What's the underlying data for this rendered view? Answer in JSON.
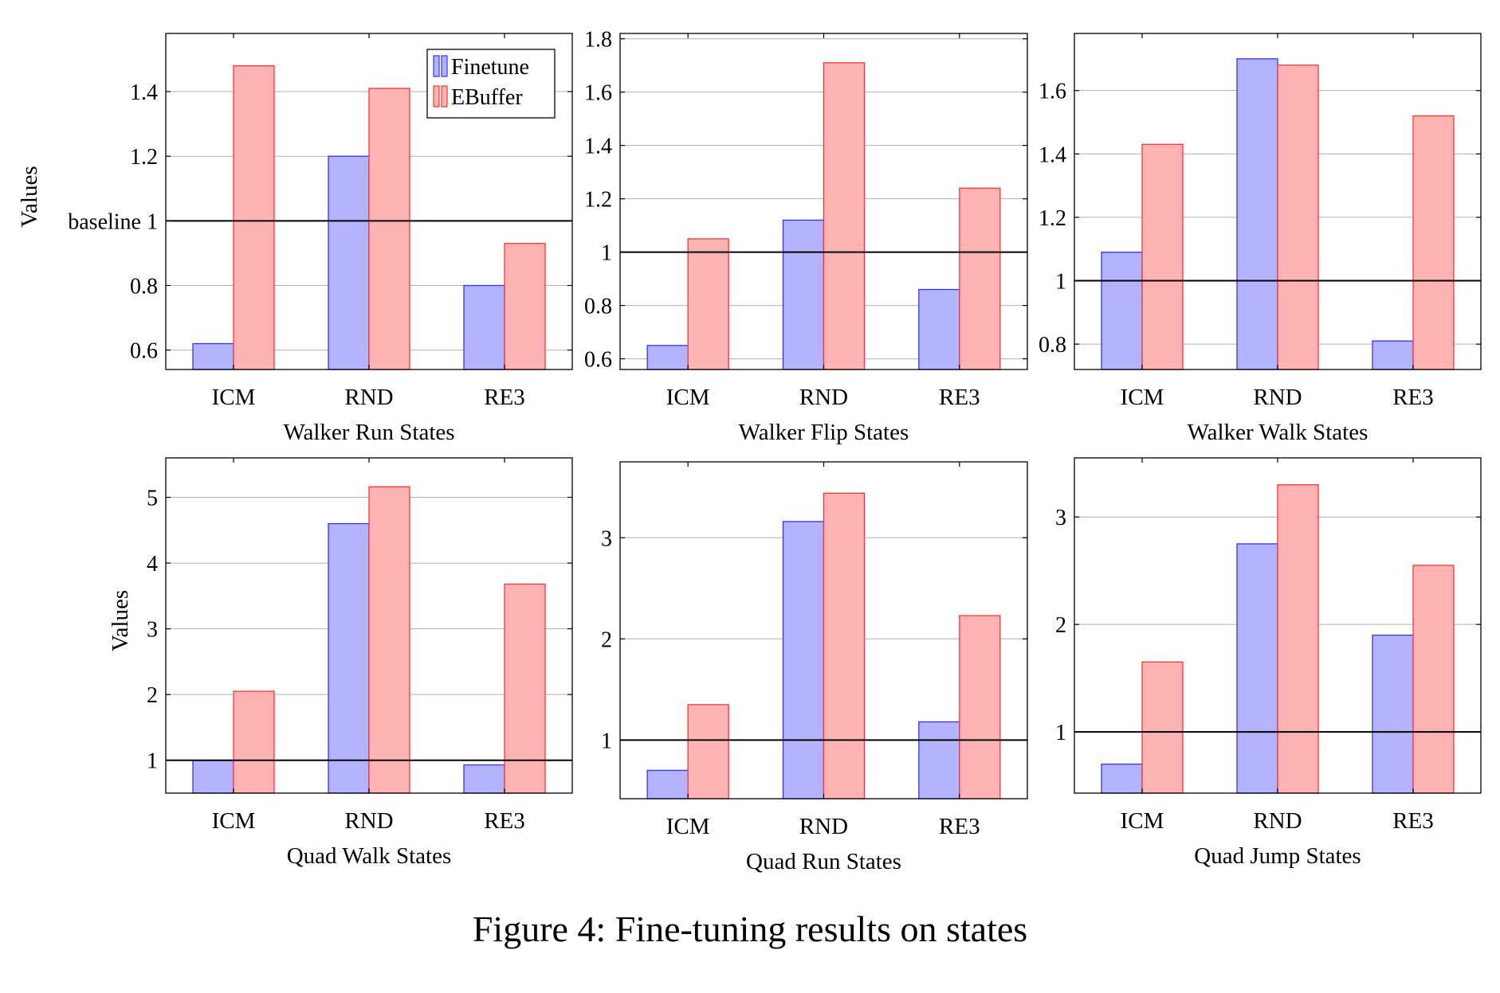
{
  "caption": "Figure 4: Fine-tuning results on states",
  "colors": {
    "finetune_fill": "#b3b3ff",
    "finetune_stroke": "#3333ff",
    "ebuffer_fill": "#ffb3b3",
    "ebuffer_stroke": "#ff3333",
    "baseline": "#000000",
    "grid": "#b0b0b0"
  },
  "chart_data": [
    {
      "type": "bar",
      "title": "",
      "xlabel": "Walker Run States",
      "ylabel": "Values",
      "categories": [
        "ICM",
        "RND",
        "RE3"
      ],
      "series": [
        {
          "name": "Finetune",
          "values": [
            0.62,
            1.2,
            0.8
          ]
        },
        {
          "name": "EBuffer",
          "values": [
            1.48,
            1.41,
            0.93
          ]
        }
      ],
      "ylim": [
        0.54,
        1.58
      ],
      "yticks": [
        0.6,
        0.8,
        1,
        1.2,
        1.4
      ],
      "ytick_labels": [
        "0.6",
        "0.8",
        "baseline 1",
        "1.2",
        "1.4"
      ],
      "baseline": 1,
      "grid": true,
      "legend": "top-right"
    },
    {
      "type": "bar",
      "title": "",
      "xlabel": "Walker Flip States",
      "ylabel": "",
      "categories": [
        "ICM",
        "RND",
        "RE3"
      ],
      "series": [
        {
          "name": "Finetune",
          "values": [
            0.65,
            1.12,
            0.86
          ]
        },
        {
          "name": "EBuffer",
          "values": [
            1.05,
            1.71,
            1.24
          ]
        }
      ],
      "ylim": [
        0.56,
        1.82
      ],
      "yticks": [
        0.6,
        0.8,
        1,
        1.2,
        1.4,
        1.6,
        1.8
      ],
      "ytick_labels": [
        "0.6",
        "0.8",
        "1",
        "1.2",
        "1.4",
        "1.6",
        "1.8"
      ],
      "baseline": 1,
      "grid": true
    },
    {
      "type": "bar",
      "title": "",
      "xlabel": "Walker Walk States",
      "ylabel": "",
      "categories": [
        "ICM",
        "RND",
        "RE3"
      ],
      "series": [
        {
          "name": "Finetune",
          "values": [
            1.09,
            1.7,
            0.81
          ]
        },
        {
          "name": "EBuffer",
          "values": [
            1.43,
            1.68,
            1.52
          ]
        }
      ],
      "ylim": [
        0.72,
        1.78
      ],
      "yticks": [
        0.8,
        1,
        1.2,
        1.4,
        1.6
      ],
      "ytick_labels": [
        "0.8",
        "1",
        "1.2",
        "1.4",
        "1.6"
      ],
      "baseline": 1,
      "grid": true
    },
    {
      "type": "bar",
      "title": "",
      "xlabel": "Quad Walk States",
      "ylabel": "Values",
      "categories": [
        "ICM",
        "RND",
        "RE3"
      ],
      "series": [
        {
          "name": "Finetune",
          "values": [
            1.0,
            4.6,
            0.93
          ]
        },
        {
          "name": "EBuffer",
          "values": [
            2.05,
            5.16,
            3.68
          ]
        }
      ],
      "ylim": [
        0.5,
        5.6
      ],
      "yticks": [
        1,
        2,
        3,
        4,
        5
      ],
      "ytick_labels": [
        "1",
        "2",
        "3",
        "4",
        "5"
      ],
      "baseline": 1,
      "grid": true
    },
    {
      "type": "bar",
      "title": "",
      "xlabel": "Quad Run States",
      "ylabel": "",
      "categories": [
        "ICM",
        "RND",
        "RE3"
      ],
      "series": [
        {
          "name": "Finetune",
          "values": [
            0.7,
            3.16,
            1.18
          ]
        },
        {
          "name": "EBuffer",
          "values": [
            1.35,
            3.44,
            2.23
          ]
        }
      ],
      "ylim": [
        0.42,
        3.75
      ],
      "yticks": [
        1,
        2,
        3
      ],
      "ytick_labels": [
        "1",
        "2",
        "3"
      ],
      "baseline": 1,
      "grid": true
    },
    {
      "type": "bar",
      "title": "",
      "xlabel": "Quad Jump States",
      "ylabel": "",
      "categories": [
        "ICM",
        "RND",
        "RE3"
      ],
      "series": [
        {
          "name": "Finetune",
          "values": [
            0.7,
            2.75,
            1.9
          ]
        },
        {
          "name": "EBuffer",
          "values": [
            1.65,
            3.3,
            2.55
          ]
        }
      ],
      "ylim": [
        0.43,
        3.55
      ],
      "yticks": [
        1,
        2,
        3
      ],
      "ytick_labels": [
        "1",
        "2",
        "3"
      ],
      "baseline": 1,
      "grid": true
    }
  ]
}
